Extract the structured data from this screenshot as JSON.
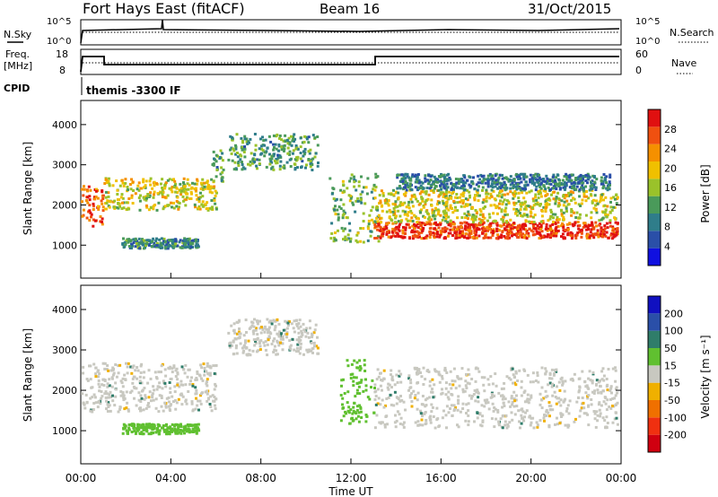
{
  "header": {
    "title": "Fort Hays East (fitACF)",
    "beam": "Beam 16",
    "date": "31/Oct/2015"
  },
  "panels": {
    "nsky_label": "N.Sky",
    "nsearch_label": "N.Search",
    "freq_label": "Freq.",
    "freq_unit": "[MHz]",
    "nave_label": "Nave",
    "cpid_label": "CPID",
    "cpid_value": "themis -3300 IF",
    "nsky_ticks": [
      "10^5",
      "10^0"
    ],
    "nsearch_ticks": [
      "10^5",
      "10^0"
    ],
    "freq_ticks": [
      "18",
      "8"
    ],
    "nave_ticks": [
      "60",
      "0"
    ]
  },
  "chart_data": [
    {
      "type": "heatmap",
      "name": "power",
      "ylabel": "Slant Range [km]",
      "xlabel": "Time UT",
      "x_ticks": [
        "00:00",
        "04:00",
        "08:00",
        "12:00",
        "16:00",
        "20:00",
        "00:00"
      ],
      "y_ticks": [
        1000,
        2000,
        3000,
        4000
      ],
      "xlim": [
        0,
        24
      ],
      "ylim": [
        180,
        4600
      ],
      "colorbar": {
        "label": "Power [dB]",
        "ticks": [
          4,
          8,
          12,
          16,
          20,
          24,
          28
        ],
        "range": [
          0,
          32
        ],
        "colors": [
          "#1010e0",
          "#2a4fa8",
          "#2f7d8a",
          "#4a9a5a",
          "#9ac22a",
          "#f0c000",
          "#f59000",
          "#f05010",
          "#e01010"
        ]
      },
      "regions": [
        {
          "t0": 0.0,
          "t1": 1.0,
          "r0": 1500,
          "r1": 2500,
          "power": 26
        },
        {
          "t0": 1.0,
          "t1": 6.0,
          "r0": 1900,
          "r1": 2700,
          "power": 18
        },
        {
          "t0": 1.8,
          "t1": 5.2,
          "r0": 950,
          "r1": 1200,
          "power": 10
        },
        {
          "t0": 5.8,
          "t1": 6.3,
          "r0": 2600,
          "r1": 3400,
          "power": 12
        },
        {
          "t0": 6.5,
          "t1": 10.5,
          "r0": 2900,
          "r1": 3800,
          "power": 12
        },
        {
          "t0": 11.0,
          "t1": 13.2,
          "r0": 1100,
          "r1": 2800,
          "power": 14
        },
        {
          "t0": 13.0,
          "t1": 23.8,
          "r0": 1200,
          "r1": 1600,
          "power": 28
        },
        {
          "t0": 13.0,
          "t1": 23.8,
          "r0": 1600,
          "r1": 2400,
          "power": 18
        },
        {
          "t0": 14.0,
          "t1": 23.5,
          "r0": 2400,
          "r1": 2800,
          "power": 9
        }
      ]
    },
    {
      "type": "heatmap",
      "name": "velocity",
      "ylabel": "Slant Range [km]",
      "xlabel": "Time UT",
      "x_ticks": [
        "00:00",
        "04:00",
        "08:00",
        "12:00",
        "16:00",
        "20:00",
        "00:00"
      ],
      "y_ticks": [
        1000,
        2000,
        3000,
        4000
      ],
      "xlim": [
        0,
        24
      ],
      "ylim": [
        180,
        4600
      ],
      "colorbar": {
        "label": "Velocity [m s⁻¹]",
        "ticks": [
          200,
          100,
          50,
          15,
          -15,
          -50,
          -100,
          -200
        ],
        "colors": [
          "#1010c0",
          "#2a4fa8",
          "#2f7d6a",
          "#60c030",
          "#c8c8c0",
          "#f0b000",
          "#f07000",
          "#f03010",
          "#d00010"
        ]
      },
      "regions": [
        {
          "t0": 0.0,
          "t1": 6.0,
          "r0": 1500,
          "r1": 2700,
          "velocity": 0
        },
        {
          "t0": 1.8,
          "t1": 5.2,
          "r0": 950,
          "r1": 1200,
          "velocity": 40
        },
        {
          "t0": 6.5,
          "t1": 10.5,
          "r0": 2900,
          "r1": 3800,
          "velocity": 0
        },
        {
          "t0": 11.5,
          "t1": 13.0,
          "r0": 1200,
          "r1": 2800,
          "velocity": 30
        },
        {
          "t0": 13.0,
          "t1": 23.8,
          "r0": 1100,
          "r1": 2600,
          "velocity": 0
        }
      ]
    }
  ]
}
